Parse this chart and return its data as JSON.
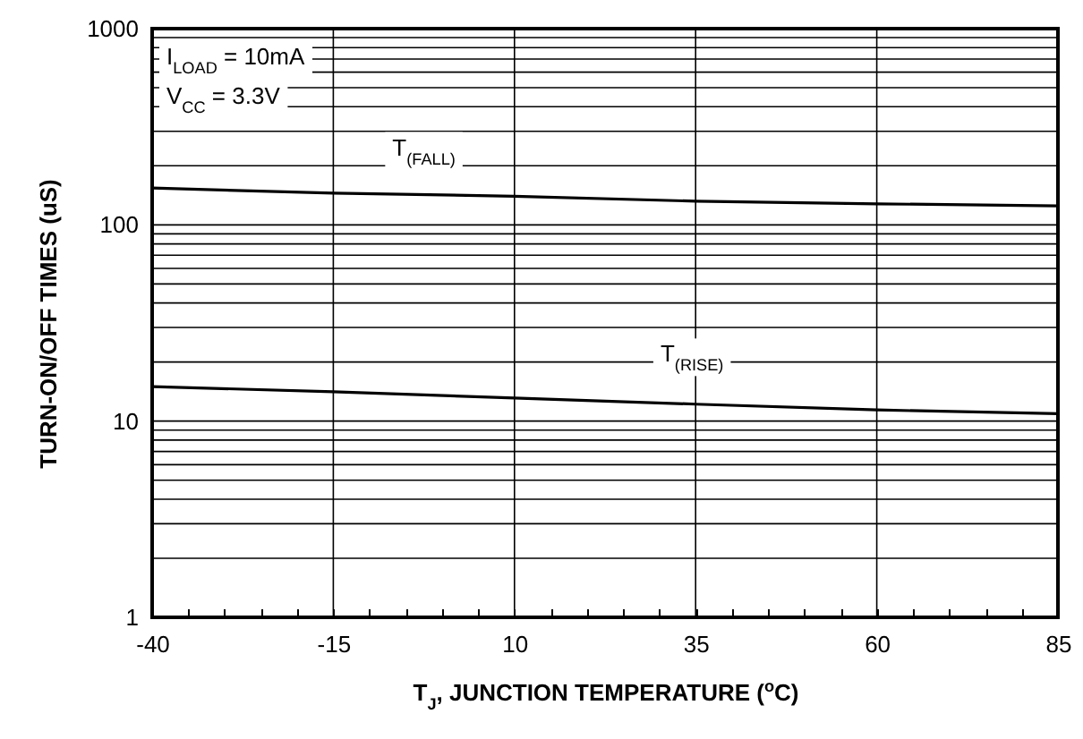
{
  "chart_data": {
    "type": "line",
    "xlabel": "T$_{J}$, JUNCTION TEMPERATURE ($^{o}$C)",
    "ylabel": "TURN-ON/OFF TIMES (uS)",
    "x": [
      -40,
      -15,
      10,
      35,
      60,
      85
    ],
    "series": [
      {
        "name": "T$_{(FALL)}$",
        "color": "#000000",
        "values": [
          154,
          145,
          140,
          132,
          128,
          125
        ]
      },
      {
        "name": "T$_{(RISE)}$",
        "color": "#000000",
        "values": [
          15.0,
          14.1,
          13.1,
          12.2,
          11.4,
          10.9
        ]
      }
    ],
    "annotations": [
      "I$_{LOAD}$ = 10mA",
      "V$_{CC}$ = 3.3V"
    ],
    "log": "y",
    "xlim": [
      -40,
      85
    ],
    "xticks": [
      -40,
      {
        "value": -35,
        "label": null
      },
      {
        "value": -30,
        "label": null
      },
      {
        "value": -25,
        "label": null
      },
      {
        "value": -20,
        "label": null
      },
      -15,
      {
        "value": -10,
        "label": null
      },
      {
        "value": -5,
        "label": null
      },
      {
        "value": 0,
        "label": null
      },
      {
        "value": 5,
        "label": null
      },
      10,
      {
        "value": 15,
        "label": null
      },
      {
        "value": 20,
        "label": null
      },
      {
        "value": 25,
        "label": null
      },
      {
        "value": 30,
        "label": null
      },
      35,
      {
        "value": 40,
        "label": null
      },
      {
        "value": 45,
        "label": null
      },
      {
        "value": 50,
        "label": null
      },
      {
        "value": 55,
        "label": null
      },
      60,
      {
        "value": 65,
        "label": null
      },
      {
        "value": 70,
        "label": null
      },
      {
        "value": 75,
        "label": null
      },
      {
        "value": 80,
        "label": null
      },
      85
    ],
    "ylim": [
      1,
      1000
    ],
    "yticks": [
      1,
      {
        "value": 2,
        "label": null
      },
      {
        "value": 3,
        "label": null
      },
      {
        "value": 4,
        "label": null
      },
      {
        "value": 5,
        "label": null
      },
      {
        "value": 6,
        "label": null
      },
      {
        "value": 7,
        "label": null
      },
      {
        "value": 8,
        "label": null
      },
      {
        "value": 9,
        "label": null
      },
      10,
      {
        "value": 20,
        "label": null
      },
      {
        "value": 30,
        "label": null
      },
      {
        "value": 40,
        "label": null
      },
      {
        "value": 50,
        "label": null
      },
      {
        "value": 60,
        "label": null
      },
      {
        "value": 70,
        "label": null
      },
      {
        "value": 80,
        "label": null
      },
      {
        "value": 90,
        "label": null
      },
      100,
      {
        "value": 200,
        "label": null
      },
      {
        "value": 300,
        "label": null
      },
      {
        "value": 400,
        "label": null
      },
      {
        "value": 500,
        "label": null
      },
      {
        "value": 600,
        "label": null
      },
      {
        "value": 700,
        "label": null
      },
      {
        "value": 800,
        "label": null
      },
      {
        "value": 900,
        "label": null
      },
      1000
    ],
    "grid": true,
    "marker": "none",
    "line_style": "solid"
  }
}
